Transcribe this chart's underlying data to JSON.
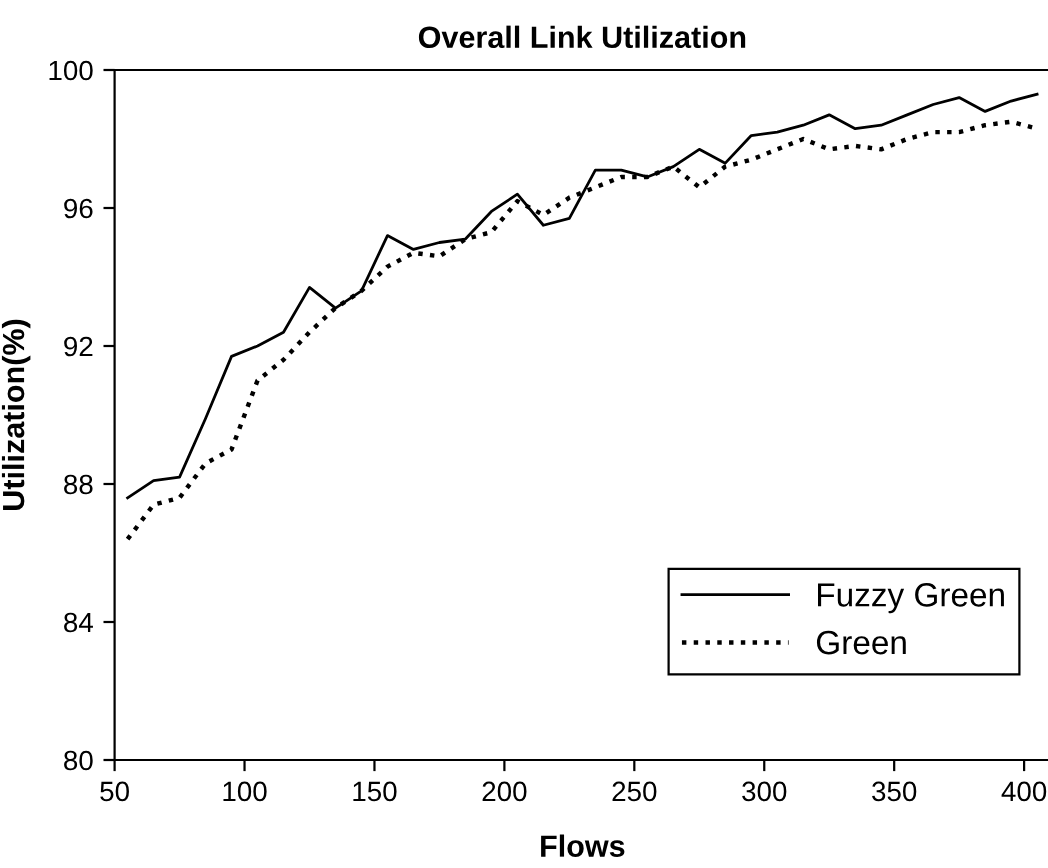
{
  "chart_data": {
    "type": "line",
    "title": "Overall Link Utilization",
    "xlabel": "Flows",
    "ylabel": "Utilization(%)",
    "x": [
      55,
      65,
      75,
      85,
      95,
      105,
      115,
      125,
      135,
      145,
      155,
      165,
      175,
      185,
      195,
      205,
      215,
      225,
      235,
      245,
      255,
      265,
      275,
      285,
      295,
      305,
      315,
      325,
      335,
      345,
      355,
      365,
      375,
      385,
      395,
      405
    ],
    "series": [
      {
        "name": "Fuzzy Green",
        "color": "#000000",
        "line_style": "solid",
        "values": [
          87.6,
          88.1,
          88.2,
          89.9,
          91.7,
          92.0,
          92.4,
          93.7,
          93.1,
          93.6,
          95.2,
          94.8,
          95.0,
          95.1,
          95.9,
          96.4,
          95.5,
          95.7,
          97.1,
          97.1,
          96.9,
          97.2,
          97.7,
          97.3,
          98.1,
          98.2,
          98.4,
          98.7,
          98.3,
          98.4,
          98.7,
          99.0,
          99.2,
          98.8,
          99.1,
          99.3
        ]
      },
      {
        "name": "Green",
        "color": "#000000",
        "line_style": "dotted",
        "values": [
          86.4,
          87.4,
          87.6,
          88.6,
          89.0,
          91.0,
          91.6,
          92.4,
          93.1,
          93.6,
          94.3,
          94.7,
          94.6,
          95.1,
          95.3,
          96.2,
          95.8,
          96.3,
          96.6,
          96.9,
          96.9,
          97.2,
          96.6,
          97.2,
          97.4,
          97.7,
          98.0,
          97.7,
          97.8,
          97.7,
          98.0,
          98.2,
          98.2,
          98.4,
          98.5,
          98.3
        ]
      }
    ],
    "xlim": [
      50,
      410
    ],
    "xticks": [
      50,
      100,
      150,
      200,
      250,
      300,
      350,
      400
    ],
    "ylim": [
      80,
      100
    ],
    "yticks": [
      80,
      84,
      88,
      92,
      96,
      100
    ],
    "grid": false,
    "legend": "bottom right",
    "marker": "none"
  }
}
